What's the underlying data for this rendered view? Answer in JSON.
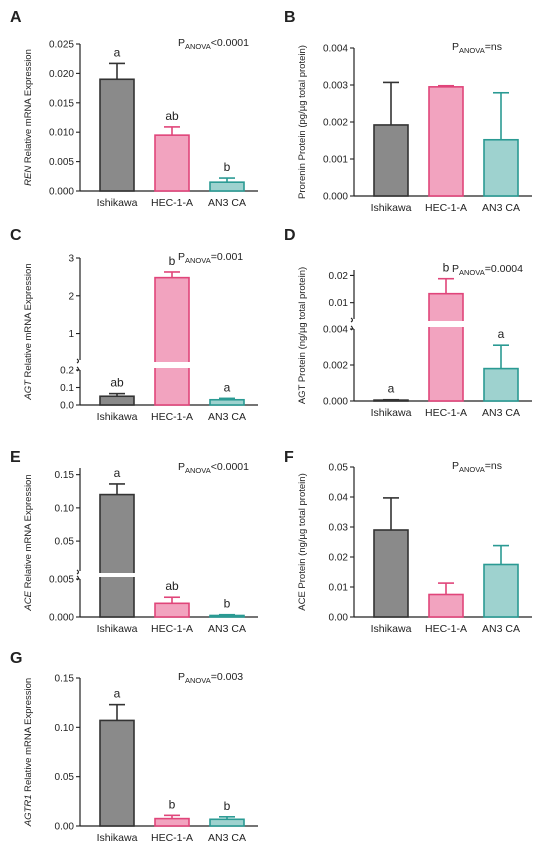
{
  "colors": {
    "axis": "#222222",
    "Ishikawa": {
      "fill": "#8a8a8a",
      "stroke": "#333333"
    },
    "HEC-1-A": {
      "fill": "#f2a3bf",
      "stroke": "#e0457a"
    },
    "AN3 CA": {
      "fill": "#9ed2cf",
      "stroke": "#2a9a93"
    }
  },
  "chart_data": [
    {
      "panel": "A",
      "type": "bar",
      "categories": [
        "Ishikawa",
        "HEC-1-A",
        "AN3 CA"
      ],
      "values": [
        0.019,
        0.0095,
        0.0015
      ],
      "errors": [
        0.0027,
        0.0014,
        0.0007
      ],
      "sig_letters": [
        "a",
        "ab",
        "b"
      ],
      "ylabel_italic": "REN",
      "ylabel_rest": " Relative mRNA Expression",
      "ylim": [
        0,
        0.025
      ],
      "yticks": [
        "0.000",
        "0.005",
        "0.010",
        "0.015",
        "0.020",
        "0.025"
      ],
      "anova_main": "P",
      "anova_sub": "ANOVA",
      "anova_rest": "<0.0001"
    },
    {
      "panel": "B",
      "type": "bar",
      "categories": [
        "Ishikawa",
        "HEC-1-A",
        "AN3 CA"
      ],
      "values": [
        0.00192,
        0.00295,
        0.00152
      ],
      "errors": [
        0.00115,
        3e-05,
        0.00127
      ],
      "sig_letters": [
        "",
        "",
        ""
      ],
      "ylabel_italic": "",
      "ylabel_rest": "Prorenin Protein (pg/µg total protein)",
      "ylim": [
        0,
        0.004
      ],
      "yticks": [
        "0.000",
        "0.001",
        "0.002",
        "0.003",
        "0.004"
      ],
      "anova_main": "P",
      "anova_sub": "ANOVA",
      "anova_rest": "=ns"
    },
    {
      "panel": "C",
      "type": "bar",
      "broken_axis": true,
      "categories": [
        "Ishikawa",
        "HEC-1-A",
        "AN3 CA"
      ],
      "values": [
        0.05,
        2.48,
        0.03
      ],
      "errors": [
        0.015,
        0.15,
        0.008
      ],
      "sig_letters": [
        "ab",
        "b",
        "a"
      ],
      "ylabel_italic": "AGT",
      "ylabel_rest": " Relative mRNA Expression",
      "lower_range": [
        0,
        0.2
      ],
      "upper_range": [
        0.3,
        3
      ],
      "lower_ticks": [
        "0.0",
        "0.1",
        "0.2"
      ],
      "upper_ticks": [
        "1",
        "2",
        "3"
      ],
      "anova_main": "P",
      "anova_sub": "ANOVA",
      "anova_rest": "=0.001"
    },
    {
      "panel": "D",
      "type": "bar",
      "broken_axis": true,
      "categories": [
        "Ishikawa",
        "HEC-1-A",
        "AN3 CA"
      ],
      "values": [
        5e-05,
        0.0133,
        0.0018
      ],
      "errors": [
        2e-05,
        0.0055,
        0.0013
      ],
      "sig_letters": [
        "a",
        "b",
        "a"
      ],
      "ylabel_italic": "",
      "ylabel_rest": "AGT Protein (ng/µg total protein)",
      "lower_range": [
        0,
        0.004
      ],
      "upper_range": [
        0.004,
        0.022
      ],
      "lower_ticks": [
        "0.000",
        "0.002",
        "0.004"
      ],
      "upper_ticks": [
        "0.01",
        "0.02"
      ],
      "anova_main": "P",
      "anova_sub": "ANOVA",
      "anova_rest": "=0.0004"
    },
    {
      "panel": "E",
      "type": "bar",
      "broken_axis": true,
      "categories": [
        "Ishikawa",
        "HEC-1-A",
        "AN3 CA"
      ],
      "values": [
        0.12,
        0.0018,
        0.0002
      ],
      "errors": [
        0.016,
        0.0008,
        0.0001
      ],
      "sig_letters": [
        "a",
        "ab",
        "b"
      ],
      "ylabel_italic": "ACE",
      "ylabel_rest": " Relative mRNA Expression",
      "lower_range": [
        0,
        0.005
      ],
      "upper_range": [
        0.005,
        0.16
      ],
      "lower_ticks": [
        "0.000",
        "0.005"
      ],
      "upper_ticks": [
        "0.05",
        "0.10",
        "0.15"
      ],
      "anova_main": "P",
      "anova_sub": "ANOVA",
      "anova_rest": "<0.0001"
    },
    {
      "panel": "F",
      "type": "bar",
      "categories": [
        "Ishikawa",
        "HEC-1-A",
        "AN3 CA"
      ],
      "values": [
        0.029,
        0.0075,
        0.0175
      ],
      "errors": [
        0.0107,
        0.0038,
        0.0063
      ],
      "sig_letters": [
        "",
        "",
        ""
      ],
      "ylabel_italic": "",
      "ylabel_rest": "ACE Protein (ng/µg total protein)",
      "ylim": [
        0,
        0.05
      ],
      "yticks": [
        "0.00",
        "0.01",
        "0.02",
        "0.03",
        "0.04",
        "0.05"
      ],
      "anova_main": "P",
      "anova_sub": "ANOVA",
      "anova_rest": "=ns"
    },
    {
      "panel": "G",
      "type": "bar",
      "categories": [
        "Ishikawa",
        "HEC-1-A",
        "AN3 CA"
      ],
      "values": [
        0.107,
        0.0075,
        0.0068
      ],
      "errors": [
        0.016,
        0.0033,
        0.0025
      ],
      "sig_letters": [
        "a",
        "b",
        "b"
      ],
      "ylabel_italic": "AGTR1",
      "ylabel_rest": " Relative mRNA Expression",
      "ylim": [
        0,
        0.15
      ],
      "yticks": [
        "0.00",
        "0.05",
        "0.10",
        "0.15"
      ],
      "anova_main": "P",
      "anova_sub": "ANOVA",
      "anova_rest": "=0.003"
    }
  ]
}
